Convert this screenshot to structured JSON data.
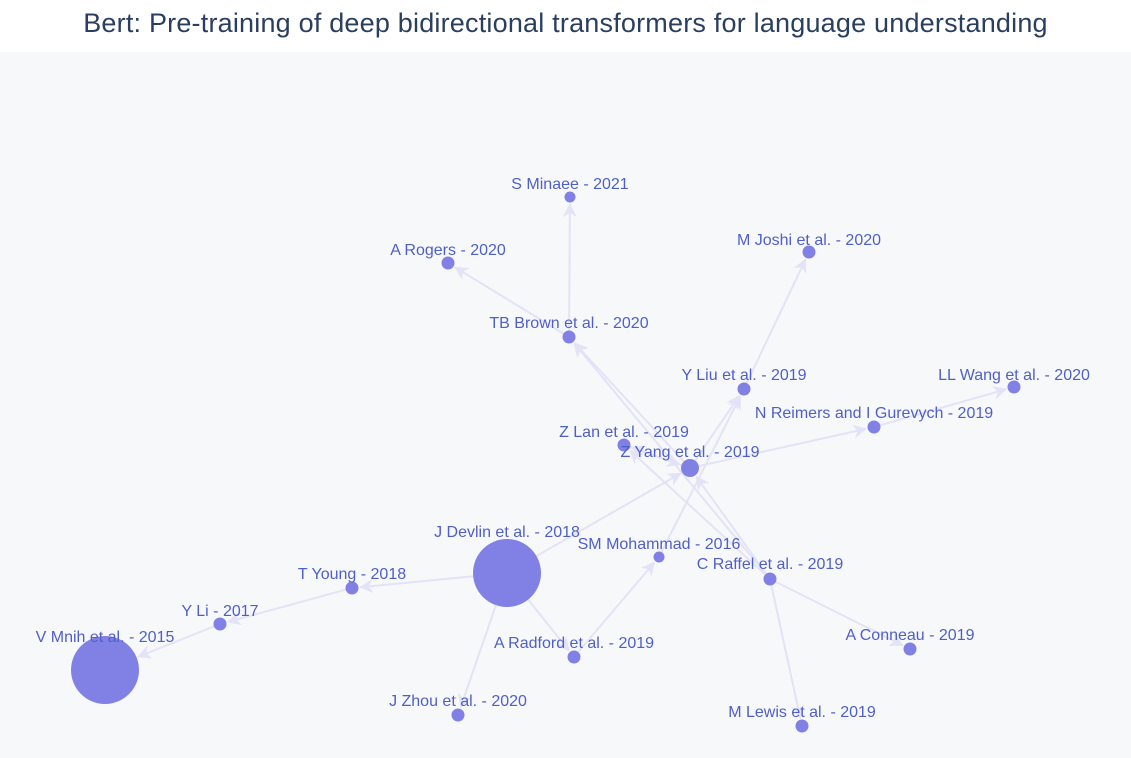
{
  "title": "Bert: Pre-training of deep bidirectional transformers for language understanding",
  "colors": {
    "background": "#f7f8fa",
    "node": "#8181e5",
    "edge": "#e3e3f8",
    "label": "#4f5fc9",
    "title": "#2a3f5f"
  },
  "graph": {
    "nodes": [
      {
        "id": "devlin",
        "label": "J Devlin et al. - 2018",
        "size": "large"
      },
      {
        "id": "mnih",
        "label": "V Mnih et al. - 2015",
        "size": "large"
      },
      {
        "id": "young",
        "label": "T Young - 2018",
        "size": "small"
      },
      {
        "id": "li",
        "label": "Y Li  - 2017",
        "size": "small"
      },
      {
        "id": "zhou",
        "label": "J Zhou et al. - 2020",
        "size": "small"
      },
      {
        "id": "radford",
        "label": "A Radford et al. - 2019",
        "size": "small"
      },
      {
        "id": "mohammad",
        "label": "SM Mohammad  - 2016",
        "size": "tiny"
      },
      {
        "id": "raffel",
        "label": "C Raffel et al. - 2019",
        "size": "small"
      },
      {
        "id": "conneau",
        "label": "A Conneau - 2019",
        "size": "small"
      },
      {
        "id": "lewis",
        "label": "M Lewis et al. - 2019",
        "size": "small"
      },
      {
        "id": "yang",
        "label": "Z Yang et al. - 2019",
        "size": "medium"
      },
      {
        "id": "lan",
        "label": "Z Lan et al. - 2019",
        "size": "small"
      },
      {
        "id": "liu",
        "label": "Y Liu et al. - 2019",
        "size": "small"
      },
      {
        "id": "reimers",
        "label": "N Reimers and  I Gurevych  - 2019",
        "size": "small"
      },
      {
        "id": "wang",
        "label": "LL Wang et al. - 2020",
        "size": "small"
      },
      {
        "id": "brown",
        "label": "TB Brown et al. - 2020",
        "size": "small"
      },
      {
        "id": "rogers",
        "label": "A Rogers - 2020",
        "size": "small"
      },
      {
        "id": "minaee",
        "label": "S Minaee - 2021",
        "size": "tiny"
      },
      {
        "id": "joshi",
        "label": "M Joshi et al. - 2020",
        "size": "small"
      }
    ],
    "edges": [
      {
        "source": "devlin",
        "target": "young"
      },
      {
        "source": "young",
        "target": "li"
      },
      {
        "source": "li",
        "target": "mnih"
      },
      {
        "source": "devlin",
        "target": "zhou"
      },
      {
        "source": "devlin",
        "target": "radford"
      },
      {
        "source": "devlin",
        "target": "yang"
      },
      {
        "source": "radford",
        "target": "mohammad"
      },
      {
        "source": "mohammad",
        "target": "liu"
      },
      {
        "source": "raffel",
        "target": "conneau"
      },
      {
        "source": "raffel",
        "target": "lewis"
      },
      {
        "source": "raffel",
        "target": "yang"
      },
      {
        "source": "raffel",
        "target": "lan"
      },
      {
        "source": "raffel",
        "target": "brown"
      },
      {
        "source": "yang",
        "target": "brown"
      },
      {
        "source": "yang",
        "target": "reimers"
      },
      {
        "source": "yang",
        "target": "lan"
      },
      {
        "source": "lan",
        "target": "yang"
      },
      {
        "source": "yang",
        "target": "liu"
      },
      {
        "source": "liu",
        "target": "joshi"
      },
      {
        "source": "reimers",
        "target": "wang"
      },
      {
        "source": "brown",
        "target": "rogers"
      },
      {
        "source": "brown",
        "target": "minaee"
      }
    ]
  }
}
